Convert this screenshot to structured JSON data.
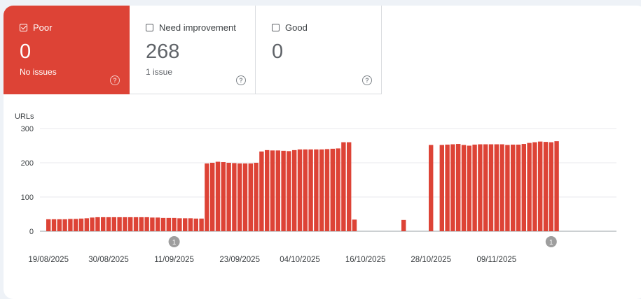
{
  "tiles": [
    {
      "label": "Poor",
      "count": "0",
      "sub": "No issues",
      "active": true,
      "help_icon": "?"
    },
    {
      "label": "Need improvement",
      "count": "268",
      "sub": "1 issue",
      "active": false,
      "help_icon": "?"
    },
    {
      "label": "Good",
      "count": "0",
      "sub": "",
      "active": false,
      "help_icon": "?"
    }
  ],
  "colors": {
    "bar": "#dd4336",
    "grid": "#e8eaed",
    "axis": "#9aa0a6",
    "text": "#3c4043",
    "marker": "#9e9e9e"
  },
  "chart_data": {
    "type": "bar",
    "ylabel": "URLs",
    "ylim": [
      0,
      300
    ],
    "yticks": [
      "0",
      "100",
      "200",
      "300"
    ],
    "xtick_labels": [
      "19/08/2025",
      "30/08/2025",
      "11/09/2025",
      "23/09/2025",
      "04/10/2025",
      "16/10/2025",
      "28/10/2025",
      "09/11/2025"
    ],
    "annotations": [
      {
        "date": "2025-09-11",
        "text": "1"
      },
      {
        "date": "2025-11-19",
        "text": "1"
      }
    ],
    "start_date": "2025-08-19",
    "values": [
      35,
      35,
      35,
      35,
      36,
      36,
      37,
      38,
      40,
      41,
      41,
      41,
      41,
      41,
      41,
      41,
      41,
      41,
      41,
      40,
      40,
      39,
      39,
      39,
      38,
      38,
      38,
      37,
      37,
      198,
      200,
      203,
      202,
      200,
      199,
      198,
      198,
      198,
      200,
      233,
      237,
      236,
      236,
      235,
      234,
      237,
      239,
      239,
      239,
      239,
      239,
      240,
      241,
      242,
      260,
      260,
      34,
      null,
      null,
      null,
      null,
      null,
      null,
      null,
      null,
      33,
      null,
      null,
      null,
      null,
      252,
      null,
      252,
      253,
      254,
      255,
      252,
      250,
      253,
      254,
      254,
      254,
      254,
      254,
      252,
      253,
      253,
      255,
      258,
      260,
      262,
      261,
      260,
      263
    ]
  }
}
